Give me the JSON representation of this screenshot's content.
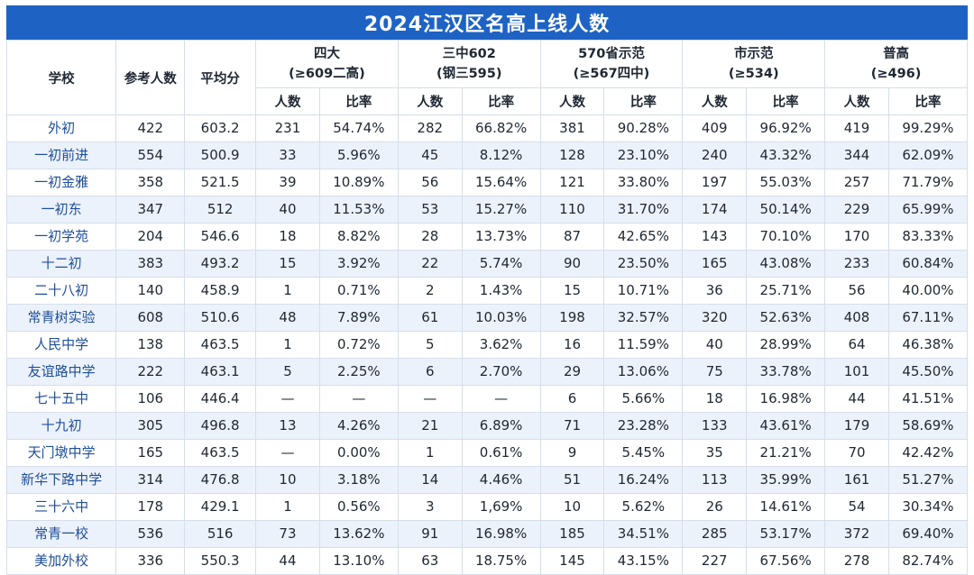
{
  "title": "2024江汉区名高上线人数",
  "header": {
    "school": "学校",
    "candidates": "参考人数",
    "average": "平均分",
    "groups": [
      {
        "name": "四大",
        "sub": "(≥609二高)"
      },
      {
        "name": "三中602",
        "sub": "(钢三595)"
      },
      {
        "name": "570省示范",
        "sub": "(≥567四中)"
      },
      {
        "name": "市示范",
        "sub": "(≥534)"
      },
      {
        "name": "普高",
        "sub": "(≥496)"
      }
    ],
    "count_label": "人数",
    "rate_label": "比率"
  },
  "rows": [
    [
      "外初",
      "422",
      "603.2",
      "231",
      "54.74%",
      "282",
      "66.82%",
      "381",
      "90.28%",
      "409",
      "96.92%",
      "419",
      "99.29%"
    ],
    [
      "一初前进",
      "554",
      "500.9",
      "33",
      "5.96%",
      "45",
      "8.12%",
      "128",
      "23.10%",
      "240",
      "43.32%",
      "344",
      "62.09%"
    ],
    [
      "一初金雅",
      "358",
      "521.5",
      "39",
      "10.89%",
      "56",
      "15.64%",
      "121",
      "33.80%",
      "197",
      "55.03%",
      "257",
      "71.79%"
    ],
    [
      "一初东",
      "347",
      "512",
      "40",
      "11.53%",
      "53",
      "15.27%",
      "110",
      "31.70%",
      "174",
      "50.14%",
      "229",
      "65.99%"
    ],
    [
      "一初学苑",
      "204",
      "546.6",
      "18",
      "8.82%",
      "28",
      "13.73%",
      "87",
      "42.65%",
      "143",
      "70.10%",
      "170",
      "83.33%"
    ],
    [
      "十二初",
      "383",
      "493.2",
      "15",
      "3.92%",
      "22",
      "5.74%",
      "90",
      "23.50%",
      "165",
      "43.08%",
      "233",
      "60.84%"
    ],
    [
      "二十八初",
      "140",
      "458.9",
      "1",
      "0.71%",
      "2",
      "1.43%",
      "15",
      "10.71%",
      "36",
      "25.71%",
      "56",
      "40.00%"
    ],
    [
      "常青树实验",
      "608",
      "510.6",
      "48",
      "7.89%",
      "61",
      "10.03%",
      "198",
      "32.57%",
      "320",
      "52.63%",
      "408",
      "67.11%"
    ],
    [
      "人民中学",
      "138",
      "463.5",
      "1",
      "0.72%",
      "5",
      "3.62%",
      "16",
      "11.59%",
      "40",
      "28.99%",
      "64",
      "46.38%"
    ],
    [
      "友谊路中学",
      "222",
      "463.1",
      "5",
      "2.25%",
      "6",
      "2.70%",
      "29",
      "13.06%",
      "75",
      "33.78%",
      "101",
      "45.50%"
    ],
    [
      "七十五中",
      "106",
      "446.4",
      "—",
      "—",
      "—",
      "—",
      "6",
      "5.66%",
      "18",
      "16.98%",
      "44",
      "41.51%"
    ],
    [
      "十九初",
      "305",
      "496.8",
      "13",
      "4.26%",
      "21",
      "6.89%",
      "71",
      "23.28%",
      "133",
      "43.61%",
      "179",
      "58.69%"
    ],
    [
      "天门墩中学",
      "165",
      "463.5",
      "—",
      "0.00%",
      "1",
      "0.61%",
      "9",
      "5.45%",
      "35",
      "21.21%",
      "70",
      "42.42%"
    ],
    [
      "新华下路中学",
      "314",
      "476.8",
      "10",
      "3.18%",
      "14",
      "4.46%",
      "51",
      "16.24%",
      "113",
      "35.99%",
      "161",
      "51.27%"
    ],
    [
      "三十六中",
      "178",
      "429.1",
      "1",
      "0.56%",
      "3",
      "1,69%",
      "10",
      "5.62%",
      "26",
      "14.61%",
      "54",
      "30.34%"
    ],
    [
      "常青一校",
      "536",
      "516",
      "73",
      "13.62%",
      "91",
      "16.98%",
      "185",
      "34.51%",
      "285",
      "53.17%",
      "372",
      "69.40%"
    ],
    [
      "美加外校",
      "336",
      "550.3",
      "44",
      "13.10%",
      "63",
      "18.75%",
      "145",
      "43.15%",
      "227",
      "67.56%",
      "278",
      "82.74%"
    ]
  ]
}
